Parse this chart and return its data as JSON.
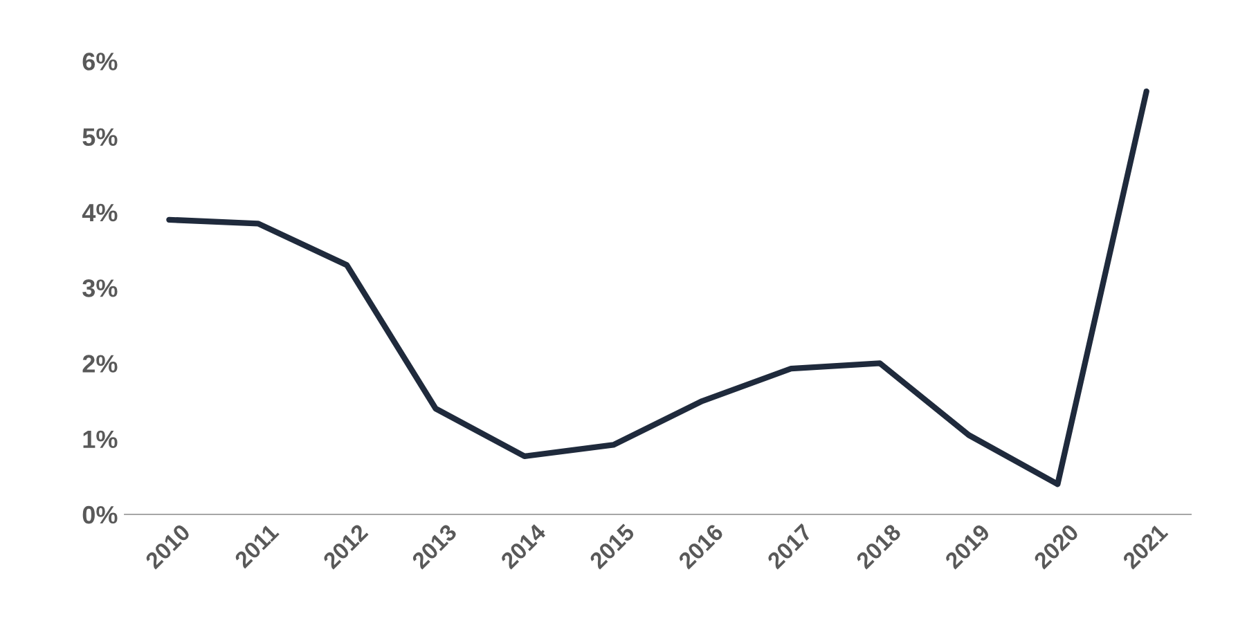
{
  "chart_data": {
    "type": "line",
    "categories": [
      "2010",
      "2011",
      "2012",
      "2013",
      "2014",
      "2015",
      "2016",
      "2017",
      "2018",
      "2019",
      "2020",
      "2021"
    ],
    "series": [
      {
        "color": "#1f2a3c",
        "values": [
          3.9,
          3.85,
          3.3,
          1.4,
          0.77,
          0.92,
          1.5,
          1.93,
          2.0,
          1.05,
          0.4,
          5.6
        ]
      }
    ],
    "ylim": [
      0,
      6
    ],
    "yticks": [
      {
        "value": 0,
        "label": "0%"
      },
      {
        "value": 1,
        "label": "1%"
      },
      {
        "value": 2,
        "label": "2%"
      },
      {
        "value": 3,
        "label": "3%"
      },
      {
        "value": 4,
        "label": "4%"
      },
      {
        "value": 5,
        "label": "5%"
      },
      {
        "value": 6,
        "label": "6%"
      }
    ],
    "grid": false,
    "legend": false,
    "marker": "none",
    "line_style": "solid"
  }
}
